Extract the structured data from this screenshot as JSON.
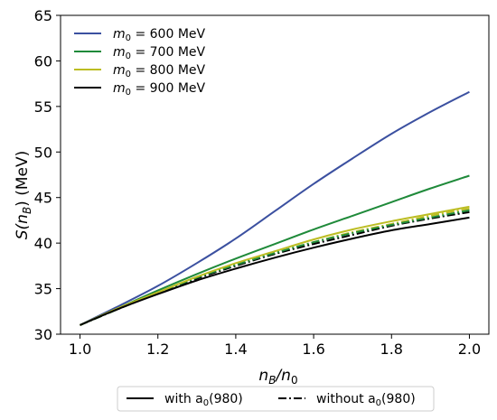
{
  "chart_data": {
    "type": "line",
    "xlabel": {
      "main": "n",
      "sub1": "B",
      "mid": "/n",
      "sub2": "0"
    },
    "ylabel": {
      "main": "S(n",
      "sub": "B",
      "tail": ") (MeV)"
    },
    "xlim": [
      0.95,
      2.05
    ],
    "ylim": [
      30,
      65
    ],
    "xticks": [
      1.0,
      1.2,
      1.4,
      1.6,
      1.8,
      2.0
    ],
    "xtick_labels": [
      "1.0",
      "1.2",
      "1.4",
      "1.6",
      "1.8",
      "2.0"
    ],
    "yticks": [
      30,
      35,
      40,
      45,
      50,
      55,
      60,
      65
    ],
    "ytick_labels": [
      "30",
      "35",
      "40",
      "45",
      "50",
      "55",
      "60",
      "65"
    ],
    "grid": false,
    "legend_placement": "top-left",
    "x": [
      1.0,
      1.1,
      1.2,
      1.3,
      1.4,
      1.5,
      1.6,
      1.7,
      1.8,
      1.9,
      2.0
    ],
    "series": [
      {
        "name": "m0 = 600 MeV",
        "label_main": "m",
        "label_sub": "0",
        "label_rest": " = 600 MeV",
        "color": "#3b50a0",
        "style": "solid",
        "values": [
          31.0,
          33.1,
          35.3,
          37.8,
          40.5,
          43.5,
          46.5,
          49.3,
          52.0,
          54.4,
          56.6
        ]
      },
      {
        "name": "m0 = 700 MeV",
        "label_main": "m",
        "label_sub": "0",
        "label_rest": " = 700 MeV",
        "color": "#1f8a3a",
        "style": "solid",
        "values": [
          31.0,
          32.9,
          34.8,
          36.6,
          38.3,
          39.9,
          41.5,
          43.0,
          44.5,
          46.0,
          47.4
        ]
      },
      {
        "name": "m0 = 800 MeV (with a0)",
        "label_main": "m",
        "label_sub": "0",
        "label_rest": " = 800 MeV",
        "color": "#bcbd22",
        "style": "solid",
        "values": [
          31.0,
          32.9,
          34.6,
          36.3,
          37.8,
          39.1,
          40.4,
          41.5,
          42.4,
          43.2,
          44.0
        ]
      },
      {
        "name": "m0 = 900 MeV (with a0)",
        "label_main": "m",
        "label_sub": "0",
        "label_rest": " = 900 MeV",
        "color": "#000000",
        "style": "solid",
        "values": [
          31.0,
          32.8,
          34.4,
          35.9,
          37.2,
          38.4,
          39.5,
          40.5,
          41.4,
          42.1,
          42.8
        ]
      },
      {
        "name": "m0 = 800 MeV (without a0)",
        "color": "#bcbd22",
        "style": "dashdot",
        "values": [
          31.0,
          32.8,
          34.5,
          36.2,
          37.6,
          38.9,
          40.1,
          41.2,
          42.1,
          43.0,
          43.8
        ]
      },
      {
        "name": "m0 = 900 MeV (without a0)",
        "color": "#000000",
        "style": "dashdot",
        "values": [
          31.0,
          32.8,
          34.5,
          36.1,
          37.5,
          38.8,
          39.9,
          40.9,
          41.9,
          42.7,
          43.4
        ]
      },
      {
        "name": "m0 = 700 MeV (without a0)",
        "color": "#1f8a3a",
        "style": "dashdot",
        "values": [
          31.0,
          32.8,
          34.5,
          36.2,
          37.6,
          38.9,
          40.1,
          41.1,
          42.0,
          42.8,
          43.6
        ]
      }
    ],
    "legend_items": [
      0,
      1,
      2,
      3
    ],
    "style_legend": [
      {
        "style": "solid",
        "text_main": "with a",
        "text_sub": "0",
        "text_tail": "(980)"
      },
      {
        "style": "dashdot",
        "text_main": "without a",
        "text_sub": "0",
        "text_tail": "(980)"
      }
    ]
  }
}
